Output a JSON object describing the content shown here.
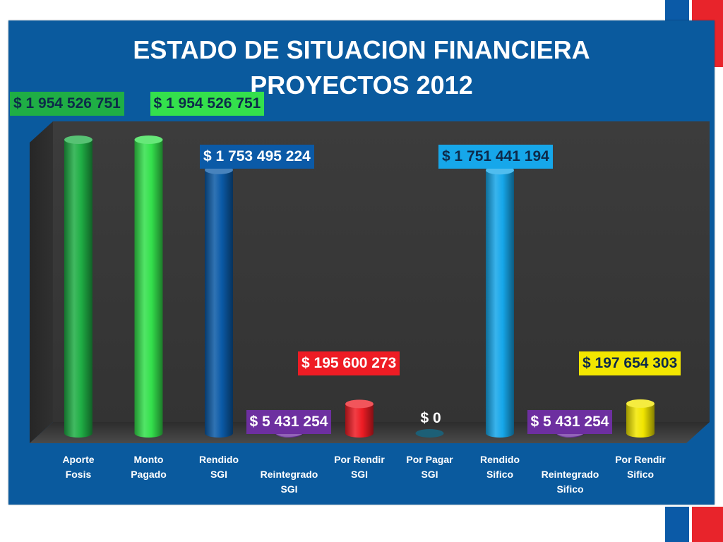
{
  "slide": {
    "panel_color": "#0a5a9e",
    "accent_blue": "#0b5aa7",
    "accent_red": "#e8242b"
  },
  "chart_data": {
    "type": "bar",
    "title": "ESTADO DE SITUACION FINANCIERA",
    "subtitle": "PROYECTOS 2012",
    "categories": [
      [
        "Aporte",
        "Fosis"
      ],
      [
        "Monto",
        "Pagado"
      ],
      [
        "Rendido",
        "SGI"
      ],
      [
        "",
        "Reintegrado",
        "SGI"
      ],
      [
        "Por Rendir",
        "SGI"
      ],
      [
        "Por Pagar",
        "SGI"
      ],
      [
        "Rendido",
        "Sifico"
      ],
      [
        "",
        "Reintegrado",
        "Sifico"
      ],
      [
        "Por Rendir",
        "Sifico"
      ]
    ],
    "values": [
      1954526751,
      1954526751,
      1753495224,
      5431254,
      195600273,
      0,
      1751441194,
      5431254,
      197654303
    ],
    "data_labels": [
      "$ 1 954 526 751",
      "$ 1 954 526 751",
      "$ 1 753 495 224",
      "$ 5 431 254",
      "$ 195 600 273",
      "$ 0",
      "$ 1 751 441 194",
      "$ 5 431 254",
      "$ 197 654 303"
    ],
    "bar_colors": [
      "#1fae45",
      "#34e04c",
      "#0b5aa7",
      "#6d2fa0",
      "#ee1c24",
      "#1c5f76",
      "#16a7ea",
      "#6d2fa0",
      "#f2e600"
    ],
    "label_backgrounds": [
      "#1fae45",
      "#34e04c",
      "#0b5aa7",
      "#6d2fa0",
      "#ee1c24",
      "",
      "#16a7ea",
      "#6d2fa0",
      "#f2e600"
    ],
    "label_text_colors": [
      "#0d2a4a",
      "#0d2a4a",
      "#ffffff",
      "#ffffff",
      "#ffffff",
      "#ffffff",
      "#0d2a4a",
      "#ffffff",
      "#0d2a4a"
    ],
    "ylim": [
      0,
      1954526751
    ],
    "grid": false,
    "legend": "none"
  }
}
